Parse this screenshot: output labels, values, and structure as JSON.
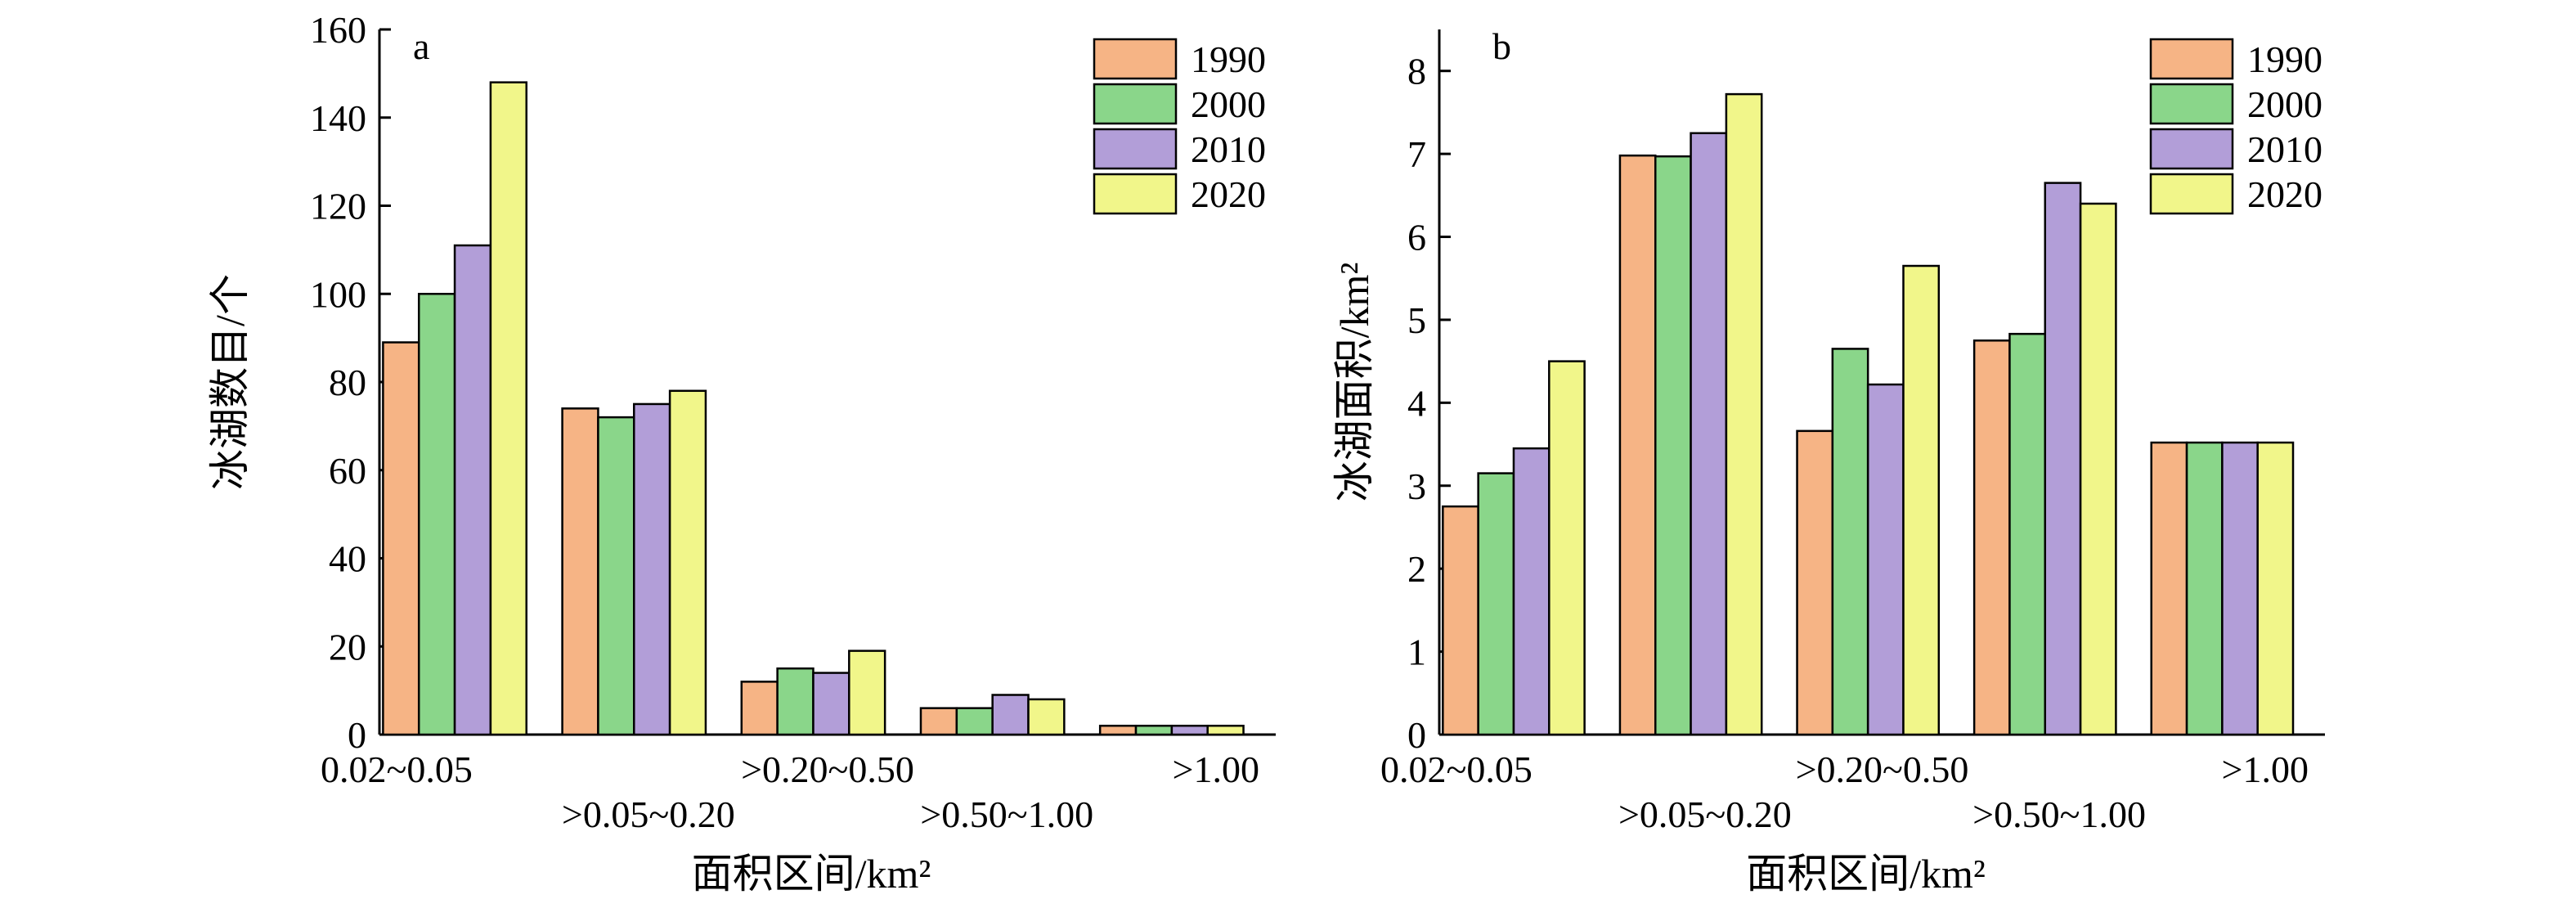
{
  "colors": {
    "1990": "#F6B485",
    "2000": "#8AD68A",
    "2010": "#B29ED8",
    "2020": "#F1F68A"
  },
  "chart_data": [
    {
      "type": "bar",
      "panel_label": "a",
      "categories": [
        ">0.02~0.05",
        ">0.05~0.20",
        ">0.20~0.50",
        ">0.50~1.00",
        ">1.00"
      ],
      "category_labels": [
        "0.02~0.05",
        ">0.05~0.20",
        ">0.20~0.50",
        ">0.50~1.00",
        ">1.00"
      ],
      "series": [
        {
          "name": "1990",
          "values": [
            89,
            74,
            12,
            6,
            2
          ]
        },
        {
          "name": "2000",
          "values": [
            100,
            72,
            15,
            6,
            2
          ]
        },
        {
          "name": "2010",
          "values": [
            111,
            75,
            14,
            9,
            2
          ]
        },
        {
          "name": "2020",
          "values": [
            148,
            78,
            19,
            8,
            2
          ]
        }
      ],
      "xlabel": "面积区间/km²",
      "ylabel": "冰湖数目/个",
      "ylim": [
        0,
        160
      ],
      "yticks": [
        0,
        20,
        40,
        60,
        80,
        100,
        120,
        140,
        160
      ],
      "legend_position": "top-right",
      "grid": false
    },
    {
      "type": "bar",
      "panel_label": "b",
      "categories": [
        ">0.02~0.05",
        ">0.05~0.20",
        ">0.20~0.50",
        ">0.50~1.00",
        ">1.00"
      ],
      "category_labels": [
        "0.02~0.05",
        ">0.05~0.20",
        ">0.20~0.50",
        ">0.50~1.00",
        ">1.00"
      ],
      "series": [
        {
          "name": "1990",
          "values": [
            2.75,
            6.98,
            3.66,
            4.75,
            3.52
          ]
        },
        {
          "name": "2000",
          "values": [
            3.15,
            6.97,
            4.65,
            4.83,
            3.52
          ]
        },
        {
          "name": "2010",
          "values": [
            3.45,
            7.25,
            4.22,
            6.65,
            3.52
          ]
        },
        {
          "name": "2020",
          "values": [
            4.5,
            7.72,
            5.65,
            6.4,
            3.52
          ]
        }
      ],
      "xlabel": "面积区间/km²",
      "ylabel": "冰湖面积/km²",
      "ylim": [
        0,
        8.5
      ],
      "yticks": [
        0,
        1,
        2,
        3,
        4,
        5,
        6,
        7,
        8
      ],
      "legend_position": "top-right",
      "grid": false
    }
  ]
}
